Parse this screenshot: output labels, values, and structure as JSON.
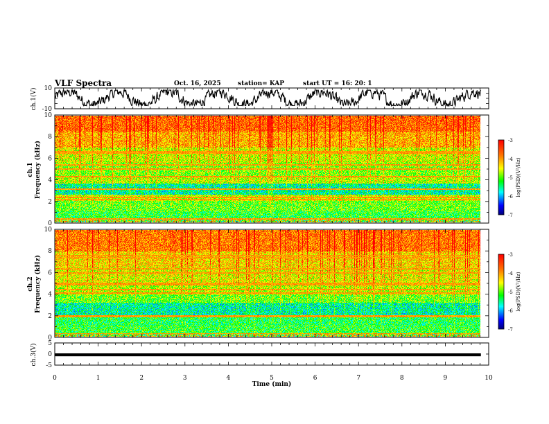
{
  "header": {
    "title": "VLF Spectra",
    "date": "Oct. 16, 2025",
    "station": "station= KAP",
    "start": "start  UT =  16: 20: 1"
  },
  "chart_data": [
    {
      "type": "line",
      "name": "ch1-waveform",
      "ylabel": "ch.1(V)",
      "ylim": [
        -10,
        10
      ],
      "yticks": [
        "10",
        "-10"
      ],
      "xlim": [
        0,
        10
      ],
      "duration_min": 9.82,
      "description_series": "noisy voltage trace oscillating roughly between -7 and 8 V"
    },
    {
      "type": "heatmap",
      "name": "ch1-spectrogram",
      "ylabel": "ch.1\nFrequency (kHz)",
      "ylim": [
        0,
        10
      ],
      "yticks": [
        "0",
        "2",
        "4",
        "6",
        "8",
        "10"
      ],
      "xlim": [
        0,
        10
      ],
      "duration_min": 9.82,
      "bands_khz": [
        {
          "from": 0.0,
          "to": 1.0,
          "level": -5.2
        },
        {
          "from": 1.0,
          "to": 2.0,
          "level": -5.0
        },
        {
          "from": 2.0,
          "to": 2.6,
          "level": -4.6
        },
        {
          "from": 2.6,
          "to": 3.6,
          "level": -5.6
        },
        {
          "from": 3.6,
          "to": 4.2,
          "level": -4.7
        },
        {
          "from": 4.2,
          "to": 5.6,
          "level": -4.9
        },
        {
          "from": 5.6,
          "to": 7.0,
          "level": -4.6
        },
        {
          "from": 7.0,
          "to": 8.5,
          "level": -4.1
        },
        {
          "from": 8.5,
          "to": 10.0,
          "level": -3.7
        }
      ],
      "lines_khz": [
        0.3,
        2.1,
        2.3,
        3.1,
        4.3,
        5.0,
        5.4,
        6.5,
        6.6
      ],
      "colorbar": {
        "label": "log(PSD)(V²/Hz)",
        "min": -7,
        "max": -3,
        "ticks": [
          "-3",
          "-4",
          "-5",
          "-6",
          "-7"
        ]
      }
    },
    {
      "type": "heatmap",
      "name": "ch2-spectrogram",
      "ylabel": "ch.2\nFrequency (kHz)",
      "ylim": [
        0,
        10
      ],
      "yticks": [
        "0",
        "2",
        "4",
        "6",
        "8",
        "10"
      ],
      "xlim": [
        0,
        10
      ],
      "duration_min": 9.82,
      "bands_khz": [
        {
          "from": 0.0,
          "to": 1.0,
          "level": -5.2
        },
        {
          "from": 1.0,
          "to": 2.0,
          "level": -5.3
        },
        {
          "from": 2.0,
          "to": 3.2,
          "level": -5.6
        },
        {
          "from": 3.2,
          "to": 3.9,
          "level": -5.0
        },
        {
          "from": 3.9,
          "to": 5.0,
          "level": -4.7
        },
        {
          "from": 5.0,
          "to": 6.5,
          "level": -4.5
        },
        {
          "from": 6.5,
          "to": 8.0,
          "level": -4.3
        },
        {
          "from": 8.0,
          "to": 10.0,
          "level": -3.8
        }
      ],
      "lines_khz": [
        0.2,
        1.9,
        4.1,
        4.4,
        4.9,
        5.0,
        6.0,
        6.4,
        7.4,
        7.6
      ],
      "colorbar": {
        "label": "log(PSD)(V²/Hz)",
        "min": -7,
        "max": -3,
        "ticks": [
          "-3",
          "-4",
          "-5",
          "-6",
          "-7"
        ]
      }
    },
    {
      "type": "line",
      "name": "ch3-waveform",
      "ylabel": "ch.3(V)",
      "ylim": [
        -5,
        5
      ],
      "yticks": [
        "5",
        "0",
        "-5"
      ],
      "xlim": [
        0,
        10
      ],
      "duration_min": 9.82,
      "description_series": "dense signal band between about -1.0 and 0.3 V"
    }
  ],
  "xaxis": {
    "label": "Time  (min)",
    "ticks": [
      "0",
      "1",
      "2",
      "3",
      "4",
      "5",
      "6",
      "7",
      "8",
      "9",
      "10"
    ]
  }
}
